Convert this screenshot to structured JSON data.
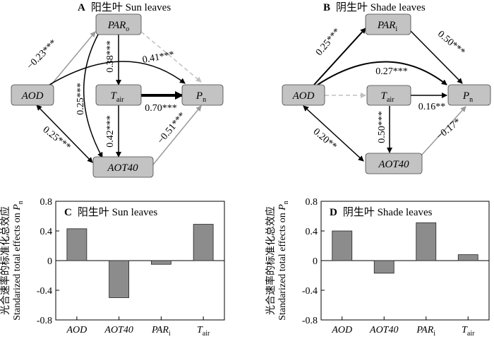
{
  "diagrams": [
    {
      "panel_letter": "A",
      "title": "阳生叶 Sun leaves",
      "nodes": {
        "par": {
          "main": "PAR",
          "sub": "o"
        },
        "tair": {
          "main": "T",
          "sub": "air"
        },
        "pn": {
          "main": "P",
          "sub": "n"
        },
        "aod": {
          "main": "AOD",
          "sub": ""
        },
        "aot40": {
          "main": "AOT40",
          "sub": ""
        }
      },
      "coefficients": {
        "aod_par": "−0.23***",
        "par_tair": "0.38***",
        "aod_pn": "0.41***",
        "par_aot40": "0.25***",
        "tair_pn": "0.70***",
        "tair_aot40": "0.42***",
        "aot40_pn": "−0.51***",
        "aod_aot40": "0.25***"
      }
    },
    {
      "panel_letter": "B",
      "title": "阴生叶 Shade leaves",
      "nodes": {
        "par": {
          "main": "PAR",
          "sub": "i"
        },
        "tair": {
          "main": "T",
          "sub": "air"
        },
        "pn": {
          "main": "P",
          "sub": "n"
        },
        "aod": {
          "main": "AOD",
          "sub": ""
        },
        "aot40": {
          "main": "AOT40",
          "sub": ""
        }
      },
      "coefficients": {
        "aod_par": "0.25***",
        "par_pn": "0.50***",
        "aod_pn": "0.27***",
        "tair_pn": "0.16**",
        "tair_aot40": "0.50***",
        "aot40_pn": "−0.17*",
        "aod_aot40": "0.20**"
      }
    }
  ],
  "colors": {
    "node_fill": "#c3c3c3",
    "bar_fill": "#8c8c8c",
    "negative_path": "#9a9a9a",
    "nonsignificant_path": "#c0c0c0"
  },
  "chart_data": [
    {
      "type": "bar",
      "panel_letter": "C",
      "title": "阳生叶 Sun leaves",
      "ylabel_cn": "光合速率的标准化总效应",
      "ylabel_en": "Standarized total effects on ",
      "ylabel_var": {
        "main": "P",
        "sub": "n"
      },
      "categories": [
        {
          "main": "AOD",
          "sub": ""
        },
        {
          "main": "AOT40",
          "sub": ""
        },
        {
          "main": "PAR",
          "sub": "i"
        },
        {
          "main": "T",
          "sub": "air"
        }
      ],
      "values": [
        0.43,
        -0.5,
        -0.05,
        0.49
      ],
      "ylim": [
        -0.8,
        0.8
      ],
      "yticks": [
        "-0.8",
        "-0.4",
        "0",
        "0.4",
        "0.8"
      ],
      "grid": false
    },
    {
      "type": "bar",
      "panel_letter": "D",
      "title": "阴生叶 Shade leaves",
      "ylabel_cn": "光合速率的标准化总效应",
      "ylabel_en": "Standarized total effects on ",
      "ylabel_var": {
        "main": "P",
        "sub": "n"
      },
      "categories": [
        {
          "main": "AOD",
          "sub": ""
        },
        {
          "main": "AOT40",
          "sub": ""
        },
        {
          "main": "PAR",
          "sub": "i"
        },
        {
          "main": "T",
          "sub": "air"
        }
      ],
      "values": [
        0.4,
        -0.17,
        0.51,
        0.08
      ],
      "ylim": [
        -0.8,
        0.8
      ],
      "yticks": [
        "-0.8",
        "-0.4",
        "0",
        "0.4",
        "0.8"
      ],
      "grid": false
    }
  ]
}
